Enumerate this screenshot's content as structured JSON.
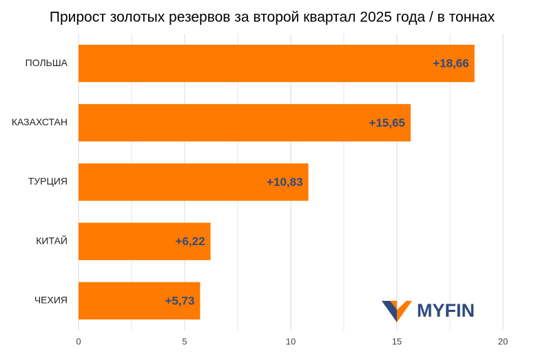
{
  "chart_data": {
    "type": "barh",
    "title": "Прирост золотых резервов за второй квартал 2025 года / в тоннах",
    "categories": [
      "ПОЛЬША",
      "КАЗАХСТАН",
      "ТУРЦИЯ",
      "КИТАЙ",
      "ЧЕХИЯ"
    ],
    "values": [
      18.66,
      15.65,
      10.83,
      6.22,
      5.73
    ],
    "value_labels": [
      "+18,66",
      "+15,65",
      "+10,83",
      "+6,22",
      "+5,73"
    ],
    "color": "#ff7a00",
    "label_color": "#2e4a7d",
    "xlim": [
      0,
      21
    ],
    "xticks": [
      0,
      5,
      10,
      15,
      20
    ],
    "minor_xticks": [
      2.5,
      7.5,
      12.5,
      17.5
    ],
    "grid": true
  },
  "logo": "MYFIN"
}
